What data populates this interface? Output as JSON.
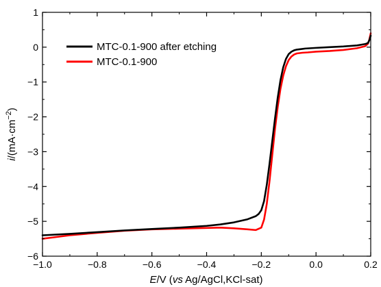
{
  "chart_data": {
    "type": "line",
    "title": "",
    "xlabel": {
      "italic": "E",
      "mid": "/V (",
      "vs": "vs",
      "rest": " Ag/AgCl,KCl-sat)"
    },
    "ylabel": {
      "italic": "i",
      "unit": "/(mA·cm",
      "sup": "−2",
      "close": ")"
    },
    "xlim": [
      -1.0,
      0.2
    ],
    "ylim": [
      -6,
      1
    ],
    "x_ticks": [
      -1.0,
      -0.8,
      -0.6,
      -0.4,
      -0.2,
      0.0,
      0.2
    ],
    "x_tick_labels": [
      "−1.0",
      "−0.8",
      "−0.6",
      "−0.4",
      "−0.2",
      "0.0",
      "0.2"
    ],
    "y_ticks": [
      -6,
      -5,
      -4,
      -3,
      -2,
      -1,
      0,
      1
    ],
    "y_tick_labels": [
      "−6",
      "−5",
      "−4",
      "−3",
      "−2",
      "−1",
      "0",
      "1"
    ],
    "grid": false,
    "legend_position": "top-left",
    "series": [
      {
        "name": "MTC-0.1-900 after etching",
        "color": "#000000",
        "x": [
          -1.0,
          -0.9,
          -0.8,
          -0.7,
          -0.6,
          -0.5,
          -0.4,
          -0.35,
          -0.3,
          -0.25,
          -0.22,
          -0.21,
          -0.2,
          -0.19,
          -0.18,
          -0.17,
          -0.16,
          -0.15,
          -0.14,
          -0.13,
          -0.12,
          -0.11,
          -0.1,
          -0.09,
          -0.08,
          -0.07,
          -0.06,
          -0.05,
          -0.04,
          -0.02,
          0.0,
          0.05,
          0.1,
          0.15,
          0.18,
          0.19,
          0.195,
          0.2
        ],
        "y": [
          -5.4,
          -5.36,
          -5.31,
          -5.26,
          -5.22,
          -5.18,
          -5.13,
          -5.09,
          -5.03,
          -4.94,
          -4.85,
          -4.79,
          -4.68,
          -4.42,
          -3.95,
          -3.35,
          -2.7,
          -2.05,
          -1.45,
          -0.95,
          -0.58,
          -0.34,
          -0.2,
          -0.13,
          -0.09,
          -0.07,
          -0.06,
          -0.05,
          -0.04,
          -0.03,
          -0.02,
          0.0,
          0.02,
          0.05,
          0.09,
          0.12,
          0.2,
          0.33
        ]
      },
      {
        "name": "MTC-0.1-900",
        "color": "#ff0000",
        "x": [
          -1.0,
          -0.9,
          -0.8,
          -0.7,
          -0.6,
          -0.5,
          -0.4,
          -0.35,
          -0.3,
          -0.25,
          -0.22,
          -0.2,
          -0.19,
          -0.18,
          -0.17,
          -0.16,
          -0.15,
          -0.14,
          -0.13,
          -0.12,
          -0.11,
          -0.1,
          -0.09,
          -0.08,
          -0.07,
          -0.06,
          -0.05,
          -0.03,
          0.0,
          0.05,
          0.1,
          0.15,
          0.18,
          0.19,
          0.195,
          0.2
        ],
        "y": [
          -5.5,
          -5.4,
          -5.33,
          -5.27,
          -5.23,
          -5.21,
          -5.19,
          -5.18,
          -5.2,
          -5.23,
          -5.25,
          -5.18,
          -4.95,
          -4.5,
          -3.85,
          -3.1,
          -2.35,
          -1.72,
          -1.2,
          -0.82,
          -0.55,
          -0.37,
          -0.27,
          -0.21,
          -0.18,
          -0.17,
          -0.16,
          -0.15,
          -0.13,
          -0.11,
          -0.08,
          -0.03,
          0.03,
          0.1,
          0.22,
          0.4
        ]
      }
    ]
  }
}
